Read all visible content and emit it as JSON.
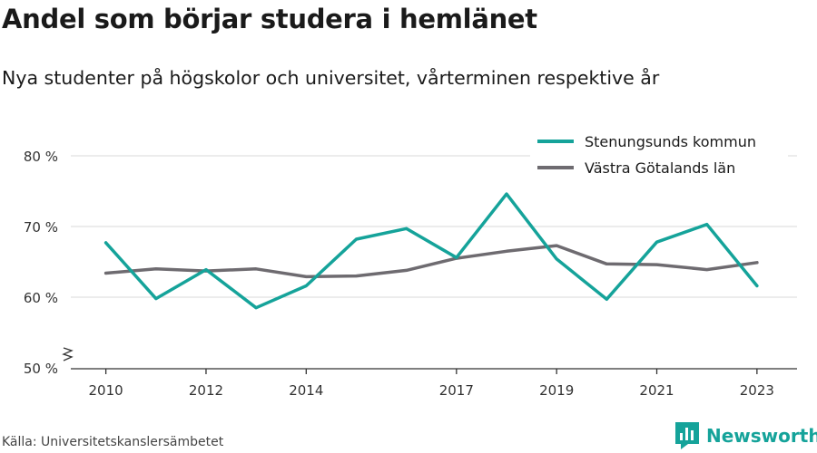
{
  "header": {
    "title": "Andel som börjar studera i hemlänet",
    "subtitle": "Nya studenter på högskolor och universitet, vårterminen respektive år"
  },
  "footer": {
    "source": "Källa: Universitetskanslersämbetet",
    "brand": "Newsworthy",
    "brand_icon": "newsworthy-logo-icon",
    "brand_color": "#15a39a"
  },
  "chart_data": {
    "type": "line",
    "title": "Andel som börjar studera i hemlänet",
    "subtitle": "Nya studenter på högskolor och universitet, vårterminen respektive år",
    "x": [
      2010,
      2011,
      2012,
      2013,
      2014,
      2015,
      2016,
      2017,
      2018,
      2019,
      2020,
      2021,
      2022,
      2023
    ],
    "x_ticks": [
      "2010",
      "2012",
      "2014",
      "2017",
      "2019",
      "2021",
      "2023"
    ],
    "y_ticks": [
      "50 %",
      "60 %",
      "70 %",
      "80 %"
    ],
    "ylim": [
      50,
      80
    ],
    "y_axis_break": true,
    "grid": "horizontal",
    "legend_position": "top-right",
    "series": [
      {
        "name": "Stenungsunds kommun",
        "color": "#15a39a",
        "values": [
          67.7,
          59.8,
          63.9,
          58.5,
          61.6,
          68.2,
          69.7,
          65.6,
          74.6,
          65.4,
          59.7,
          67.8,
          70.3,
          61.6
        ]
      },
      {
        "name": "Västra Götalands län",
        "color": "#6e6b70",
        "values": [
          63.4,
          64.0,
          63.7,
          64.0,
          62.9,
          63.0,
          63.8,
          65.5,
          66.5,
          67.3,
          64.7,
          64.6,
          63.9,
          64.9
        ]
      }
    ]
  }
}
